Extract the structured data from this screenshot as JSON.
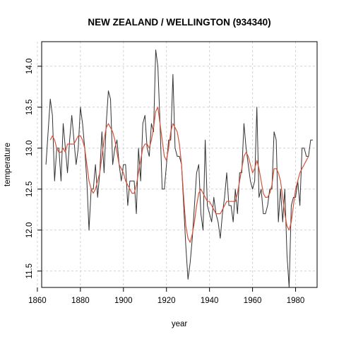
{
  "chart_data": {
    "type": "line",
    "title": "NEW ZEALAND / WELLINGTON (934340)",
    "xlabel": "year",
    "ylabel": "temperature",
    "xlim": [
      1862,
      1990
    ],
    "ylim": [
      11.3,
      14.3
    ],
    "x_ticks": [
      1860,
      1880,
      1900,
      1920,
      1940,
      1960,
      1980
    ],
    "y_ticks": [
      11.5,
      12.0,
      12.5,
      13.0,
      13.5,
      14.0
    ],
    "x_tick_labels": [
      "1860",
      "1880",
      "1900",
      "1920",
      "1940",
      "1960",
      "1980"
    ],
    "y_tick_labels": [
      "11.5",
      "12.0",
      "12.5",
      "13.0",
      "13.5",
      "14.0"
    ],
    "grid": true,
    "x": [
      1864,
      1865,
      1866,
      1867,
      1868,
      1869,
      1870,
      1871,
      1872,
      1873,
      1874,
      1875,
      1876,
      1877,
      1878,
      1879,
      1880,
      1881,
      1882,
      1883,
      1884,
      1885,
      1886,
      1887,
      1888,
      1889,
      1890,
      1891,
      1892,
      1893,
      1894,
      1895,
      1896,
      1897,
      1898,
      1899,
      1900,
      1901,
      1902,
      1903,
      1904,
      1905,
      1906,
      1907,
      1908,
      1909,
      1910,
      1911,
      1912,
      1913,
      1914,
      1915,
      1916,
      1917,
      1918,
      1919,
      1920,
      1921,
      1922,
      1923,
      1924,
      1925,
      1926,
      1927,
      1928,
      1929,
      1930,
      1931,
      1932,
      1933,
      1934,
      1935,
      1936,
      1937,
      1938,
      1939,
      1940,
      1941,
      1942,
      1943,
      1944,
      1945,
      1946,
      1947,
      1948,
      1949,
      1950,
      1951,
      1952,
      1953,
      1954,
      1955,
      1956,
      1957,
      1958,
      1959,
      1960,
      1961,
      1962,
      1963,
      1964,
      1965,
      1966,
      1967,
      1968,
      1969,
      1970,
      1971,
      1972,
      1973,
      1974,
      1975,
      1976,
      1977,
      1978,
      1979,
      1980,
      1981,
      1982,
      1983,
      1984,
      1985,
      1986,
      1987,
      1988
    ],
    "series": [
      {
        "color": "#333333",
        "values": [
          12.8,
          13.2,
          13.6,
          13.4,
          12.6,
          13.0,
          13.0,
          12.6,
          13.3,
          13.0,
          12.7,
          13.1,
          13.4,
          13.1,
          12.8,
          13.0,
          13.5,
          13.3,
          13.0,
          12.6,
          12.0,
          12.5,
          12.5,
          12.8,
          12.4,
          12.7,
          13.2,
          12.7,
          13.3,
          13.7,
          13.6,
          12.8,
          13.0,
          13.1,
          12.8,
          12.6,
          12.8,
          12.8,
          12.3,
          12.6,
          12.6,
          12.6,
          12.2,
          13.0,
          12.6,
          13.3,
          13.4,
          13.0,
          12.9,
          13.3,
          13.2,
          14.2,
          14.0,
          13.3,
          12.5,
          12.5,
          12.8,
          13.1,
          13.1,
          13.9,
          13.0,
          12.9,
          12.9,
          12.8,
          12.3,
          11.8,
          11.4,
          11.6,
          11.9,
          12.3,
          12.7,
          12.8,
          12.2,
          12.0,
          13.1,
          12.3,
          12.2,
          12.1,
          12.4,
          12.2,
          12.1,
          11.9,
          12.2,
          12.4,
          12.7,
          12.3,
          12.3,
          12.1,
          12.5,
          12.2,
          12.7,
          12.7,
          13.3,
          13.0,
          12.8,
          12.6,
          12.5,
          12.6,
          13.5,
          12.4,
          12.5,
          12.2,
          12.2,
          12.3,
          12.5,
          12.5,
          13.2,
          13.1,
          12.1,
          12.5,
          12.1,
          12.5,
          11.7,
          11.3,
          12.3,
          12.4,
          12.4,
          12.6,
          12.3,
          13.0,
          13.0,
          12.9,
          12.9,
          13.1,
          13.1
        ]
      },
      {
        "color": "#d9523a",
        "values": [
          null,
          null,
          13.1,
          13.15,
          13.1,
          13.0,
          12.95,
          12.95,
          13.0,
          12.95,
          13.05,
          13.05,
          13.05,
          13.05,
          13.1,
          13.15,
          13.15,
          13.1,
          13.0,
          12.8,
          12.6,
          12.5,
          12.45,
          12.5,
          12.6,
          12.7,
          12.9,
          13.1,
          13.25,
          13.3,
          13.25,
          13.2,
          13.1,
          12.95,
          12.8,
          12.75,
          12.7,
          12.6,
          12.55,
          12.5,
          12.45,
          12.45,
          12.55,
          12.7,
          12.85,
          13.0,
          13.05,
          13.05,
          13.0,
          13.1,
          13.25,
          13.45,
          13.5,
          13.3,
          13.1,
          12.9,
          12.85,
          13.0,
          13.2,
          13.3,
          13.25,
          13.2,
          13.05,
          12.8,
          12.4,
          12.05,
          11.9,
          11.85,
          11.95,
          12.1,
          12.3,
          12.45,
          12.5,
          12.45,
          12.4,
          12.35,
          12.35,
          12.3,
          12.25,
          12.2,
          12.2,
          12.2,
          12.25,
          12.3,
          12.35,
          12.35,
          12.35,
          12.35,
          12.35,
          12.45,
          12.6,
          12.75,
          12.9,
          12.95,
          12.9,
          12.8,
          12.7,
          12.75,
          12.85,
          12.75,
          12.6,
          12.45,
          12.4,
          12.4,
          12.45,
          12.55,
          12.75,
          12.75,
          12.7,
          12.6,
          12.4,
          12.2,
          12.05,
          12.0,
          12.1,
          12.3,
          12.5,
          12.6,
          12.7,
          12.75,
          12.8,
          12.85,
          12.9,
          null,
          null
        ]
      }
    ]
  }
}
